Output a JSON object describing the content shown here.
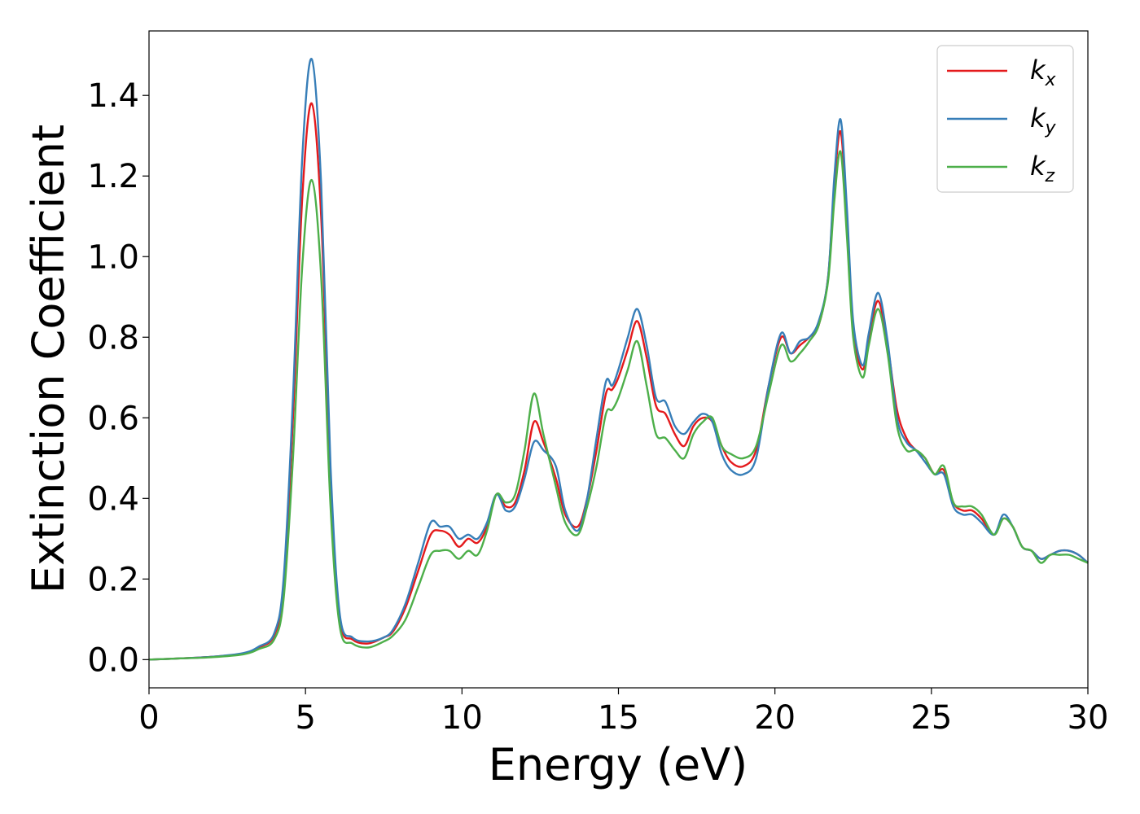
{
  "chart_data": {
    "type": "line",
    "title": "",
    "xlabel": "Energy (eV)",
    "ylabel": "Extinction Coefficient",
    "xlim": [
      0,
      30
    ],
    "ylim": [
      -0.07,
      1.56
    ],
    "xticks": [
      0,
      5,
      10,
      15,
      20,
      25,
      30
    ],
    "yticks": [
      0.0,
      0.2,
      0.4,
      0.6,
      0.8,
      1.0,
      1.2,
      1.4
    ],
    "ytick_labels": [
      "0.0",
      "0.2",
      "0.4",
      "0.6",
      "0.8",
      "1.0",
      "1.2",
      "1.4"
    ],
    "xtick_labels": [
      "0",
      "5",
      "10",
      "15",
      "20",
      "25",
      "30"
    ],
    "grid": false,
    "legend_position": "top-right",
    "series": [
      {
        "name": "k_x",
        "label_base": "k",
        "label_sub": "x",
        "color": "#e41a1c",
        "x": [
          0,
          1,
          2,
          3,
          3.5,
          4,
          4.3,
          4.6,
          4.9,
          5.2,
          5.5,
          5.8,
          6.1,
          6.5,
          7.0,
          7.5,
          7.8,
          8.2,
          8.6,
          9.0,
          9.3,
          9.6,
          9.9,
          10.2,
          10.5,
          10.8,
          11.1,
          11.4,
          11.7,
          12.0,
          12.3,
          12.6,
          13.0,
          13.3,
          13.7,
          14.0,
          14.3,
          14.6,
          14.8,
          15.0,
          15.3,
          15.6,
          15.9,
          16.2,
          16.5,
          16.8,
          17.1,
          17.4,
          17.7,
          18.0,
          18.3,
          18.6,
          19.0,
          19.4,
          19.8,
          20.2,
          20.5,
          20.8,
          21.1,
          21.4,
          21.7,
          21.9,
          22.1,
          22.3,
          22.5,
          22.8,
          23.0,
          23.3,
          23.6,
          23.9,
          24.2,
          24.5,
          24.8,
          25.1,
          25.4,
          25.7,
          26.0,
          26.3,
          26.6,
          27.0,
          27.3,
          27.6,
          27.9,
          28.2,
          28.5,
          28.8,
          29.1,
          29.4,
          29.7,
          30.0
        ],
        "y": [
          0.0,
          0.003,
          0.007,
          0.015,
          0.03,
          0.06,
          0.18,
          0.6,
          1.15,
          1.38,
          1.1,
          0.45,
          0.1,
          0.05,
          0.04,
          0.055,
          0.07,
          0.13,
          0.22,
          0.31,
          0.32,
          0.31,
          0.28,
          0.3,
          0.29,
          0.33,
          0.41,
          0.38,
          0.39,
          0.47,
          0.59,
          0.54,
          0.45,
          0.36,
          0.33,
          0.4,
          0.52,
          0.66,
          0.67,
          0.7,
          0.77,
          0.84,
          0.75,
          0.63,
          0.61,
          0.56,
          0.53,
          0.58,
          0.6,
          0.59,
          0.53,
          0.49,
          0.48,
          0.52,
          0.68,
          0.8,
          0.76,
          0.78,
          0.8,
          0.83,
          0.95,
          1.18,
          1.31,
          1.1,
          0.82,
          0.72,
          0.8,
          0.89,
          0.78,
          0.62,
          0.55,
          0.52,
          0.5,
          0.46,
          0.47,
          0.39,
          0.37,
          0.37,
          0.35,
          0.31,
          0.35,
          0.33,
          0.28,
          0.27,
          0.25,
          0.26,
          0.27,
          0.27,
          0.26,
          0.24
        ]
      },
      {
        "name": "k_y",
        "label_base": "k",
        "label_sub": "y",
        "color": "#377eb8",
        "x": [
          0,
          1,
          2,
          3,
          3.5,
          4,
          4.3,
          4.6,
          4.9,
          5.2,
          5.5,
          5.8,
          6.1,
          6.5,
          7.0,
          7.5,
          7.8,
          8.2,
          8.6,
          9.0,
          9.3,
          9.6,
          9.9,
          10.2,
          10.5,
          10.8,
          11.1,
          11.4,
          11.7,
          12.0,
          12.3,
          12.6,
          13.0,
          13.3,
          13.7,
          14.0,
          14.3,
          14.6,
          14.8,
          15.0,
          15.3,
          15.6,
          15.9,
          16.2,
          16.5,
          16.8,
          17.1,
          17.4,
          17.7,
          18.0,
          18.3,
          18.6,
          19.0,
          19.4,
          19.8,
          20.2,
          20.5,
          20.8,
          21.1,
          21.4,
          21.7,
          21.9,
          22.1,
          22.3,
          22.5,
          22.8,
          23.0,
          23.3,
          23.6,
          23.9,
          24.2,
          24.5,
          24.8,
          25.1,
          25.4,
          25.7,
          26.0,
          26.3,
          26.6,
          27.0,
          27.3,
          27.6,
          27.9,
          28.2,
          28.5,
          28.8,
          29.1,
          29.4,
          29.7,
          30.0
        ],
        "y": [
          0.0,
          0.003,
          0.007,
          0.016,
          0.032,
          0.065,
          0.2,
          0.65,
          1.25,
          1.49,
          1.18,
          0.48,
          0.11,
          0.055,
          0.045,
          0.055,
          0.075,
          0.14,
          0.24,
          0.34,
          0.33,
          0.33,
          0.3,
          0.31,
          0.3,
          0.34,
          0.41,
          0.37,
          0.38,
          0.45,
          0.54,
          0.52,
          0.48,
          0.37,
          0.32,
          0.4,
          0.55,
          0.69,
          0.68,
          0.72,
          0.8,
          0.87,
          0.78,
          0.65,
          0.64,
          0.58,
          0.56,
          0.59,
          0.61,
          0.59,
          0.51,
          0.47,
          0.46,
          0.5,
          0.68,
          0.81,
          0.76,
          0.79,
          0.8,
          0.84,
          0.95,
          1.2,
          1.34,
          1.12,
          0.84,
          0.73,
          0.81,
          0.91,
          0.79,
          0.6,
          0.54,
          0.52,
          0.49,
          0.46,
          0.46,
          0.38,
          0.36,
          0.36,
          0.34,
          0.31,
          0.36,
          0.33,
          0.28,
          0.27,
          0.25,
          0.26,
          0.27,
          0.27,
          0.26,
          0.24
        ]
      },
      {
        "name": "k_z",
        "label_base": "k",
        "label_sub": "z",
        "color": "#4daf4a",
        "x": [
          0,
          1,
          2,
          3,
          3.5,
          4,
          4.3,
          4.6,
          4.9,
          5.2,
          5.5,
          5.8,
          6.1,
          6.5,
          7.0,
          7.5,
          7.8,
          8.2,
          8.6,
          9.0,
          9.3,
          9.6,
          9.9,
          10.2,
          10.5,
          10.8,
          11.1,
          11.4,
          11.7,
          12.0,
          12.3,
          12.6,
          13.0,
          13.3,
          13.7,
          14.0,
          14.3,
          14.6,
          14.8,
          15.0,
          15.3,
          15.6,
          15.9,
          16.2,
          16.5,
          16.8,
          17.1,
          17.4,
          17.7,
          18.0,
          18.3,
          18.6,
          19.0,
          19.4,
          19.8,
          20.2,
          20.5,
          20.8,
          21.1,
          21.4,
          21.7,
          21.9,
          22.1,
          22.3,
          22.5,
          22.8,
          23.0,
          23.3,
          23.6,
          23.9,
          24.2,
          24.5,
          24.8,
          25.1,
          25.4,
          25.7,
          26.0,
          26.3,
          26.6,
          27.0,
          27.3,
          27.6,
          27.9,
          28.2,
          28.5,
          28.8,
          29.1,
          29.4,
          29.7,
          30.0
        ],
        "y": [
          0.0,
          0.003,
          0.006,
          0.013,
          0.026,
          0.05,
          0.15,
          0.5,
          0.98,
          1.19,
          0.95,
          0.38,
          0.08,
          0.04,
          0.03,
          0.045,
          0.06,
          0.1,
          0.18,
          0.26,
          0.27,
          0.27,
          0.25,
          0.27,
          0.26,
          0.32,
          0.41,
          0.39,
          0.41,
          0.52,
          0.66,
          0.56,
          0.43,
          0.34,
          0.31,
          0.38,
          0.48,
          0.61,
          0.62,
          0.65,
          0.72,
          0.79,
          0.68,
          0.56,
          0.55,
          0.52,
          0.5,
          0.56,
          0.59,
          0.6,
          0.53,
          0.51,
          0.5,
          0.53,
          0.66,
          0.78,
          0.74,
          0.76,
          0.79,
          0.83,
          0.94,
          1.14,
          1.26,
          1.05,
          0.8,
          0.7,
          0.78,
          0.87,
          0.76,
          0.58,
          0.52,
          0.52,
          0.5,
          0.46,
          0.48,
          0.39,
          0.38,
          0.38,
          0.36,
          0.31,
          0.35,
          0.33,
          0.28,
          0.27,
          0.24,
          0.26,
          0.26,
          0.26,
          0.25,
          0.24
        ]
      }
    ]
  }
}
